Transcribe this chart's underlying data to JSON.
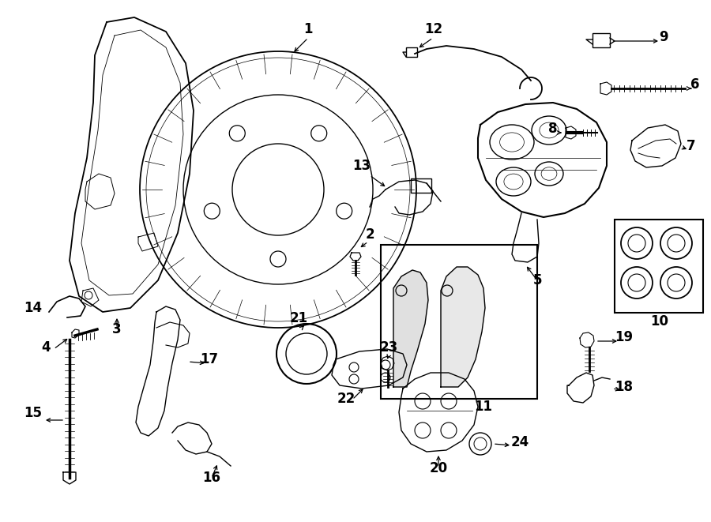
{
  "bg_color": "#ffffff",
  "line_color": "#000000",
  "figsize": [
    9.0,
    6.61
  ],
  "dpi": 100,
  "lw": 1.0
}
